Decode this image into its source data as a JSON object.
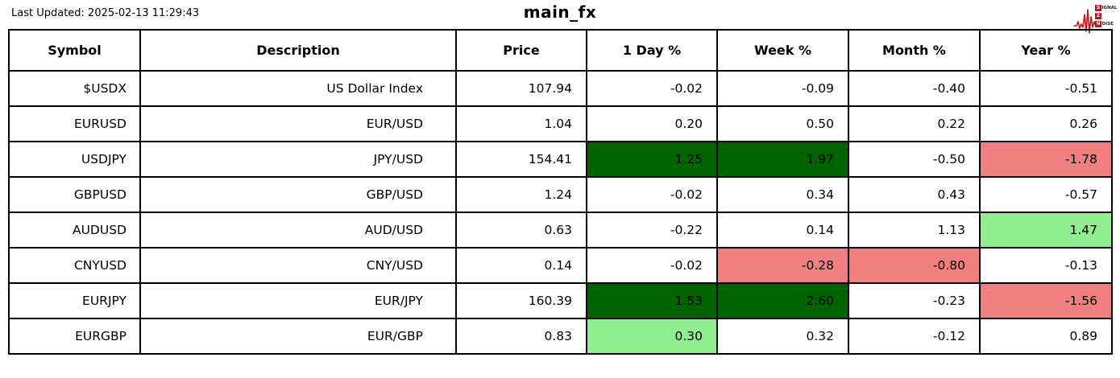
{
  "page": {
    "last_updated": "Last Updated: 2025-02-13 11:29:43",
    "title": "main_fx"
  },
  "logo": {
    "line1_box": "S",
    "line1_rest": "IGNAL",
    "line2_box": "2",
    "line3_box": "N",
    "line3_rest": "OISE",
    "accent_color": "#be1622"
  },
  "chart_data": {
    "type": "table",
    "title": "main_fx",
    "last_updated": "Last Updated: 2025-02-13 11:29:43",
    "columns": [
      "Symbol",
      "Description",
      "Price",
      "1 Day %",
      "Week %",
      "Month %",
      "Year %"
    ],
    "bg_colors": {
      "dg": "#006400",
      "lg": "#90EE90",
      "lc": "#F08080"
    },
    "rows": [
      {
        "cells": [
          "$USDX",
          "US Dollar Index",
          "107.94",
          "-0.02",
          "-0.09",
          "-0.40",
          "-0.51"
        ],
        "bg": [
          null,
          null,
          null,
          null,
          null,
          null,
          null
        ]
      },
      {
        "cells": [
          "EURUSD",
          "EUR/USD",
          "1.04",
          "0.20",
          "0.50",
          "0.22",
          "0.26"
        ],
        "bg": [
          null,
          null,
          null,
          null,
          null,
          null,
          null
        ]
      },
      {
        "cells": [
          "USDJPY",
          "JPY/USD",
          "154.41",
          "1.25",
          "1.97",
          "-0.50",
          "-1.78"
        ],
        "bg": [
          null,
          null,
          null,
          "dg",
          "dg",
          null,
          "lc"
        ]
      },
      {
        "cells": [
          "GBPUSD",
          "GBP/USD",
          "1.24",
          "-0.02",
          "0.34",
          "0.43",
          "-0.57"
        ],
        "bg": [
          null,
          null,
          null,
          null,
          null,
          null,
          null
        ]
      },
      {
        "cells": [
          "AUDUSD",
          "AUD/USD",
          "0.63",
          "-0.22",
          "0.14",
          "1.13",
          "1.47"
        ],
        "bg": [
          null,
          null,
          null,
          null,
          null,
          null,
          "lg"
        ]
      },
      {
        "cells": [
          "CNYUSD",
          "CNY/USD",
          "0.14",
          "-0.02",
          "-0.28",
          "-0.80",
          "-0.13"
        ],
        "bg": [
          null,
          null,
          null,
          null,
          "lc",
          "lc",
          null
        ]
      },
      {
        "cells": [
          "EURJPY",
          "EUR/JPY",
          "160.39",
          "1.53",
          "2.60",
          "-0.23",
          "-1.56"
        ],
        "bg": [
          null,
          null,
          null,
          "dg",
          "dg",
          null,
          "lc"
        ]
      },
      {
        "cells": [
          "EURGBP",
          "EUR/GBP",
          "0.83",
          "0.30",
          "0.32",
          "-0.12",
          "0.89"
        ],
        "bg": [
          null,
          null,
          null,
          "lg",
          null,
          null,
          null
        ]
      }
    ]
  }
}
